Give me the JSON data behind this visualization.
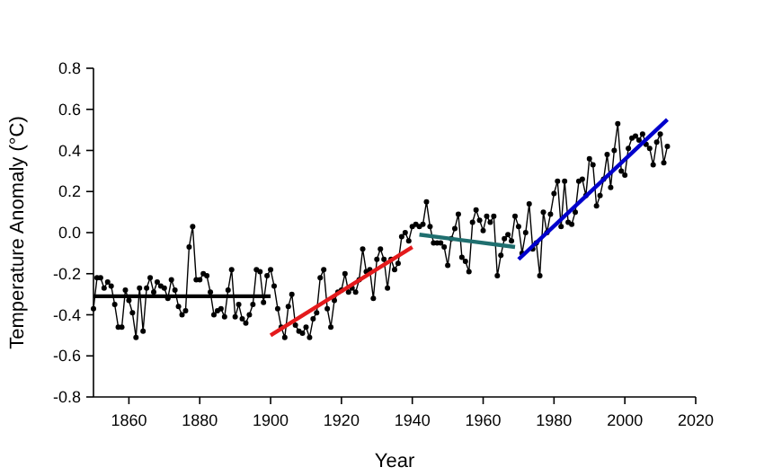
{
  "chart_data": {
    "type": "line",
    "xlabel": "Year",
    "ylabel": "Temperature Anomaly (°C)",
    "xlim": [
      1850,
      2020
    ],
    "ylim": [
      -0.8,
      0.8
    ],
    "xticks": [
      1860,
      1880,
      1900,
      1920,
      1940,
      1960,
      1980,
      2000,
      2020
    ],
    "yticks": [
      {
        "value": -0.8,
        "label": "-0.8"
      },
      {
        "value": -0.6,
        "label": "-0.6"
      },
      {
        "value": -0.4,
        "label": "-0.4"
      },
      {
        "value": -0.2,
        "label": "-0.2"
      },
      {
        "value": 0,
        "label": "0.0"
      },
      {
        "value": 0.2,
        "label": "0.2"
      },
      {
        "value": 0.4,
        "label": "0.4"
      },
      {
        "value": 0.6,
        "label": "0.6"
      },
      {
        "value": 0.8,
        "label": "0.8"
      }
    ],
    "grid": false,
    "series": [
      {
        "color": "#000000",
        "marker": "circle",
        "x": [
          1850,
          1851,
          1852,
          1853,
          1854,
          1855,
          1856,
          1857,
          1858,
          1859,
          1860,
          1861,
          1862,
          1863,
          1864,
          1865,
          1866,
          1867,
          1868,
          1869,
          1870,
          1871,
          1872,
          1873,
          1874,
          1875,
          1876,
          1877,
          1878,
          1879,
          1880,
          1881,
          1882,
          1883,
          1884,
          1885,
          1886,
          1887,
          1888,
          1889,
          1890,
          1891,
          1892,
          1893,
          1894,
          1895,
          1896,
          1897,
          1898,
          1899,
          1900,
          1901,
          1902,
          1903,
          1904,
          1905,
          1906,
          1907,
          1908,
          1909,
          1910,
          1911,
          1912,
          1913,
          1914,
          1915,
          1916,
          1917,
          1918,
          1919,
          1920,
          1921,
          1922,
          1923,
          1924,
          1925,
          1926,
          1927,
          1928,
          1929,
          1930,
          1931,
          1932,
          1933,
          1934,
          1935,
          1936,
          1937,
          1938,
          1939,
          1940,
          1941,
          1942,
          1943,
          1944,
          1945,
          1946,
          1947,
          1948,
          1949,
          1950,
          1951,
          1952,
          1953,
          1954,
          1955,
          1956,
          1957,
          1958,
          1959,
          1960,
          1961,
          1962,
          1963,
          1964,
          1965,
          1966,
          1967,
          1968,
          1969,
          1970,
          1971,
          1972,
          1973,
          1974,
          1975,
          1976,
          1977,
          1978,
          1979,
          1980,
          1981,
          1982,
          1983,
          1984,
          1985,
          1986,
          1987,
          1988,
          1989,
          1990,
          1991,
          1992,
          1993,
          1994,
          1995,
          1996,
          1997,
          1998,
          1999,
          2000,
          2001,
          2002,
          2003,
          2004,
          2005,
          2006,
          2007,
          2008,
          2009,
          2010,
          2011,
          2012
        ],
        "values": [
          -0.37,
          -0.22,
          -0.22,
          -0.27,
          -0.24,
          -0.26,
          -0.35,
          -0.46,
          -0.46,
          -0.28,
          -0.33,
          -0.39,
          -0.51,
          -0.27,
          -0.48,
          -0.27,
          -0.22,
          -0.29,
          -0.24,
          -0.26,
          -0.27,
          -0.32,
          -0.23,
          -0.28,
          -0.36,
          -0.4,
          -0.38,
          -0.07,
          0.03,
          -0.23,
          -0.23,
          -0.2,
          -0.21,
          -0.29,
          -0.4,
          -0.38,
          -0.37,
          -0.41,
          -0.28,
          -0.18,
          -0.41,
          -0.35,
          -0.42,
          -0.44,
          -0.4,
          -0.35,
          -0.18,
          -0.19,
          -0.34,
          -0.21,
          -0.18,
          -0.26,
          -0.37,
          -0.46,
          -0.51,
          -0.36,
          -0.3,
          -0.45,
          -0.48,
          -0.49,
          -0.46,
          -0.51,
          -0.42,
          -0.39,
          -0.22,
          -0.18,
          -0.37,
          -0.46,
          -0.33,
          -0.29,
          -0.28,
          -0.2,
          -0.29,
          -0.27,
          -0.29,
          -0.23,
          -0.08,
          -0.19,
          -0.18,
          -0.32,
          -0.13,
          -0.08,
          -0.13,
          -0.27,
          -0.13,
          -0.18,
          -0.15,
          -0.02,
          0,
          -0.04,
          0.03,
          0.04,
          0.03,
          0.04,
          0.15,
          0.03,
          -0.05,
          -0.05,
          -0.05,
          -0.07,
          -0.16,
          -0.03,
          0.02,
          0.09,
          -0.12,
          -0.14,
          -0.19,
          0.05,
          0.11,
          0.06,
          0.01,
          0.08,
          0.05,
          0.08,
          -0.21,
          -0.11,
          -0.03,
          -0.01,
          -0.04,
          0.08,
          0.03,
          -0.1,
          0,
          0.14,
          -0.08,
          -0.05,
          -0.21,
          0.1,
          0,
          0.09,
          0.19,
          0.25,
          0.03,
          0.25,
          0.05,
          0.04,
          0.1,
          0.25,
          0.26,
          0.18,
          0.36,
          0.33,
          0.13,
          0.18,
          0.26,
          0.38,
          0.22,
          0.4,
          0.53,
          0.3,
          0.28,
          0.41,
          0.46,
          0.47,
          0.45,
          0.48,
          0.43,
          0.41,
          0.33,
          0.44,
          0.48,
          0.34,
          0.42
        ]
      },
      {
        "type": "line",
        "color": "#000000",
        "x": [
          1850,
          1900
        ],
        "values": [
          -0.31,
          -0.31
        ]
      },
      {
        "type": "line",
        "color": "#e41a1c",
        "x": [
          1900,
          1940
        ],
        "values": [
          -0.5,
          -0.07
        ]
      },
      {
        "type": "line",
        "color": "#1f6f6f",
        "x": [
          1942,
          1969
        ],
        "values": [
          -0.01,
          -0.07
        ]
      },
      {
        "type": "line",
        "color": "#0000cc",
        "x": [
          1970,
          2012
        ],
        "values": [
          -0.13,
          0.55
        ]
      }
    ]
  }
}
